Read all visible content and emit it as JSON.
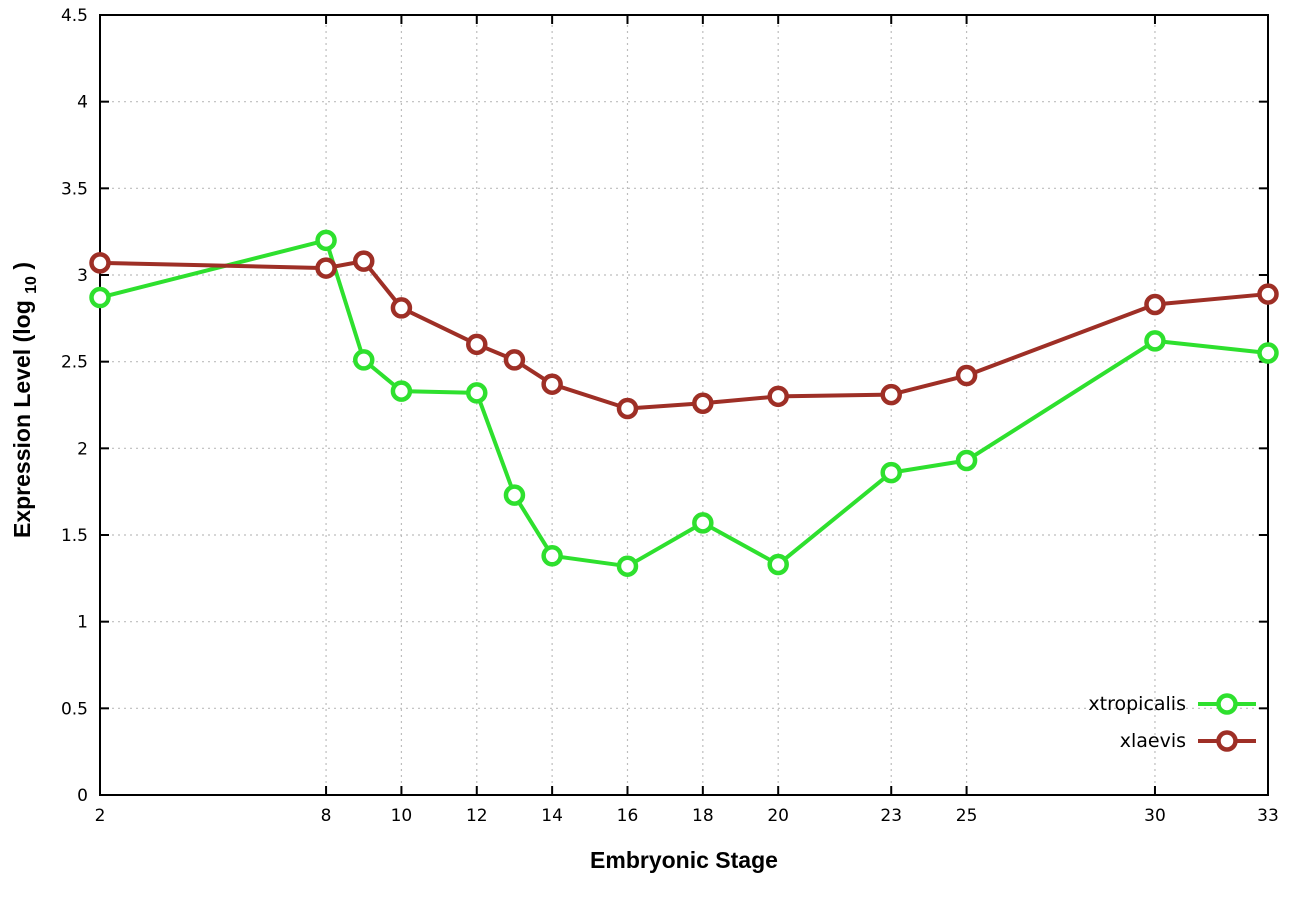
{
  "chart_data": {
    "type": "line",
    "title": "",
    "xlabel": "Embryonic Stage",
    "ylabel": "Expression Level (log10)",
    "ylabel_parts": {
      "main": "Expression Level (log",
      "sub": "10",
      "close": ")"
    },
    "xlim": [
      2,
      33
    ],
    "ylim": [
      0,
      4.5
    ],
    "grid": true,
    "legend_position": "bottom-right",
    "xticks": [
      "2",
      "8",
      "10",
      "12",
      "14",
      "16",
      "18",
      "20",
      "23",
      "25",
      "30",
      "33"
    ],
    "xtick_values": [
      2,
      8,
      10,
      12,
      14,
      16,
      18,
      20,
      23,
      25,
      30,
      33
    ],
    "yticks": [
      "0",
      "0.5",
      "1",
      "1.5",
      "2",
      "2.5",
      "3",
      "3.5",
      "4",
      "4.5"
    ],
    "ytick_values": [
      0,
      0.5,
      1,
      1.5,
      2,
      2.5,
      3,
      3.5,
      4,
      4.5
    ],
    "x": [
      2,
      8,
      9,
      10,
      12,
      13,
      14,
      16,
      18,
      20,
      23,
      25,
      30,
      33
    ],
    "series": [
      {
        "name": "xtropicalis",
        "color": "#2ee02e",
        "marker": "open-circle",
        "values": [
          2.87,
          3.2,
          2.51,
          2.33,
          2.32,
          1.73,
          1.38,
          1.32,
          1.57,
          1.33,
          1.86,
          1.93,
          2.62,
          2.55
        ]
      },
      {
        "name": "xlaevis",
        "color": "#9e2f26",
        "marker": "open-circle",
        "values": [
          3.07,
          3.04,
          3.08,
          2.81,
          2.6,
          2.51,
          2.37,
          2.23,
          2.26,
          2.3,
          2.31,
          2.42,
          2.83,
          2.89
        ]
      }
    ]
  },
  "style": {
    "grid_color": "#bdbdbd",
    "border_color": "#000000",
    "background": "#ffffff",
    "marker_fill": "#ffffff"
  }
}
